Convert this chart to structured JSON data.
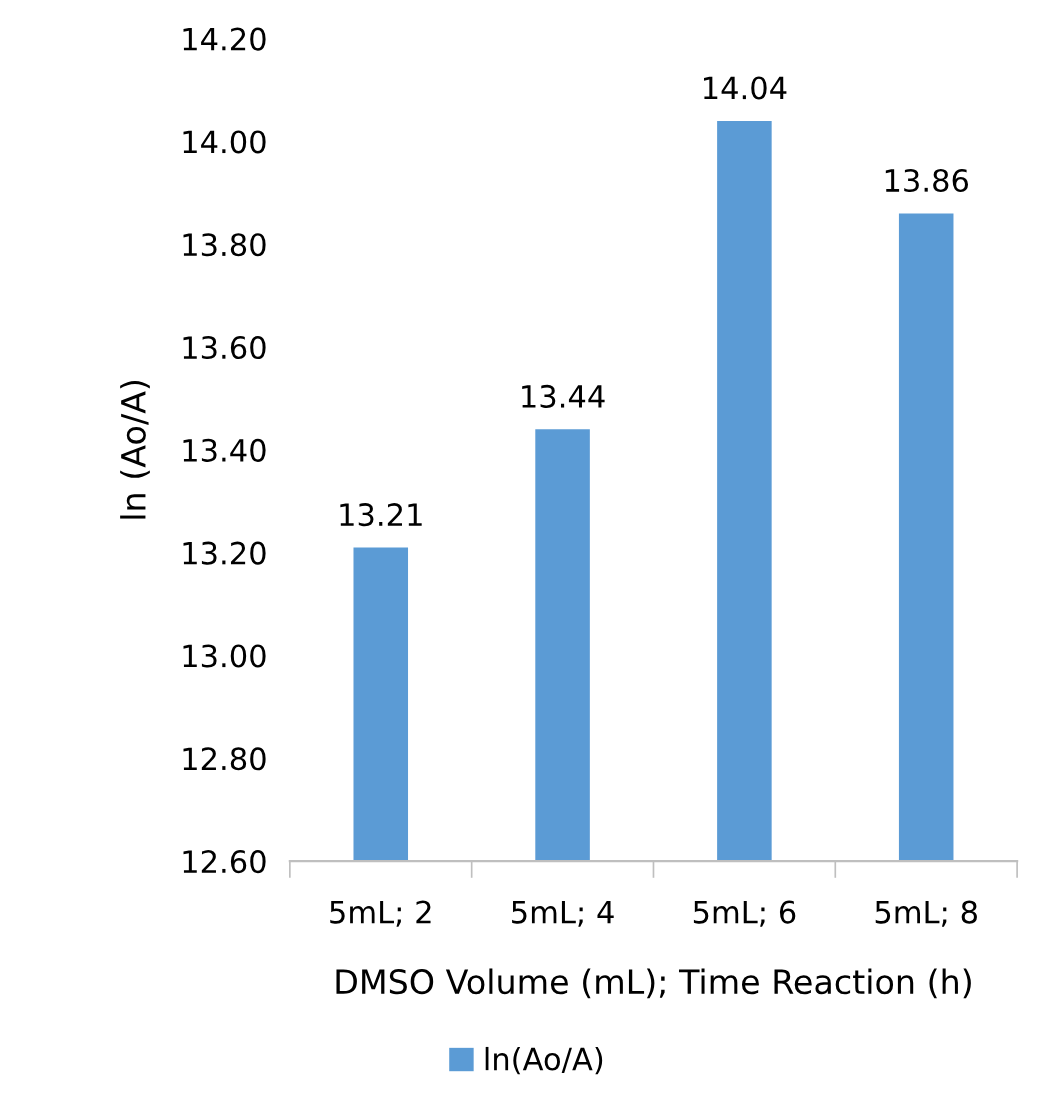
{
  "chart_data": {
    "type": "bar",
    "xlabel": "DMSO Volume (mL); Time Reaction (h)",
    "ylabel": "ln (Ao/A)",
    "categories": [
      "5mL; 2",
      "5mL; 4",
      "5mL; 6",
      "5mL; 8"
    ],
    "series": [
      {
        "name": "ln(Ao/A)",
        "color": "#5b9bd5",
        "values": [
          13.21,
          13.44,
          14.04,
          13.86
        ]
      }
    ],
    "ylim": [
      12.6,
      14.2
    ],
    "yticks": [
      {
        "value": 12.6,
        "label": "12.60"
      },
      {
        "value": 12.8,
        "label": "12.80"
      },
      {
        "value": 13.0,
        "label": "13.00"
      },
      {
        "value": 13.2,
        "label": "13.20"
      },
      {
        "value": 13.4,
        "label": "13.40"
      },
      {
        "value": 13.6,
        "label": "13.60"
      },
      {
        "value": 13.8,
        "label": "13.80"
      },
      {
        "value": 14.0,
        "label": "14.00"
      },
      {
        "value": 14.2,
        "label": "14.20"
      }
    ],
    "data_labels": true,
    "grid": false,
    "legend": "bottom"
  }
}
